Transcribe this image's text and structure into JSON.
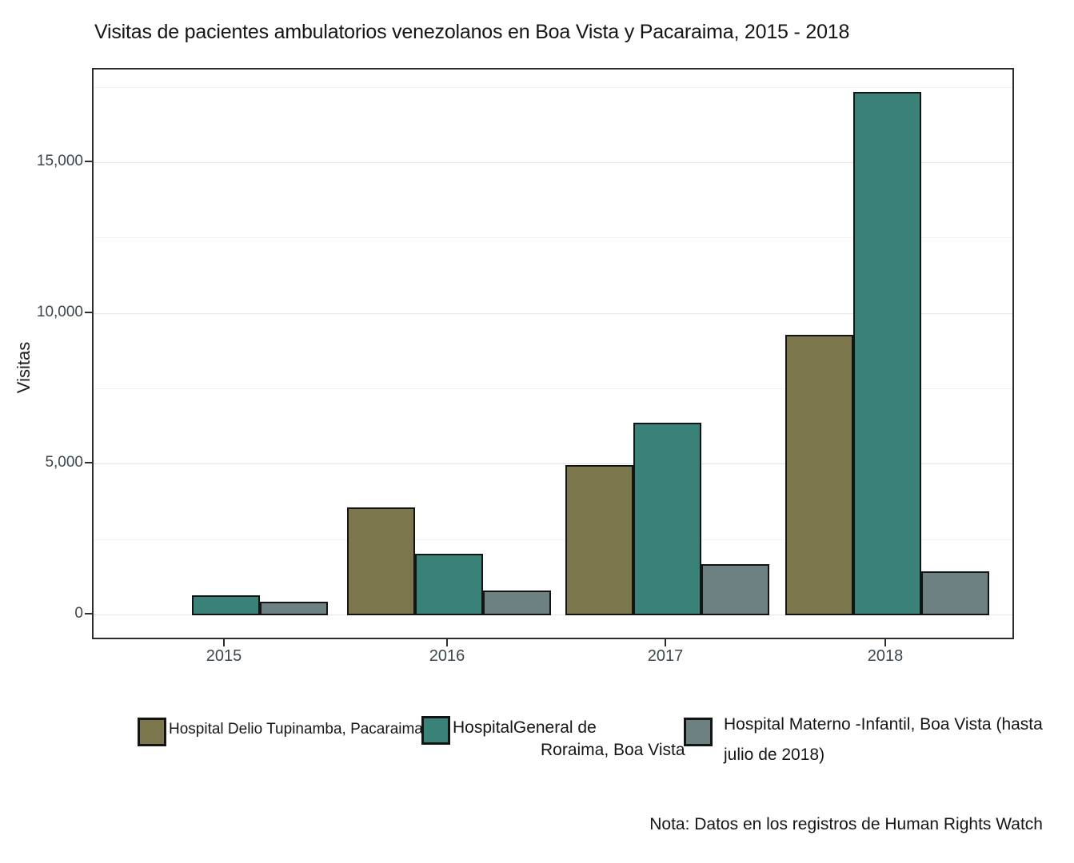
{
  "legend": {
    "items": [
      {
        "lines": [
          "Hospital Delio Tupinamba, Pacaraima"
        ]
      },
      {
        "lines": [
          "HospitalGeneral de",
          "Roraima, Boa Vista"
        ]
      },
      {
        "lines": [
          "Hospital Materno -Infantil, Boa Vista (hasta",
          "julio de 2018)"
        ]
      }
    ]
  },
  "footer": {
    "note": "Nota: Datos en los registros de Human Rights Watch"
  },
  "chart_data": {
    "type": "bar",
    "title": "Visitas de pacientes ambulatorios venezolanos en Boa Vista y Pacaraima, 2015 - 2018",
    "xlabel": "",
    "ylabel": "Visitas",
    "categories": [
      "2015",
      "2016",
      "2017",
      "2018"
    ],
    "series": [
      {
        "name": "Hospital Delio Tupinamba, Pacaraima",
        "color": "#7c764d",
        "values": [
          0,
          3580,
          4980,
          9300
        ]
      },
      {
        "name": "HospitalGeneral de Roraima, Boa Vista",
        "color": "#3a8277",
        "values": [
          650,
          2040,
          6390,
          17350
        ]
      },
      {
        "name": "Hospital Materno -Infantil, Boa Vista (hasta julio de 2018)",
        "color": "#6d8082",
        "values": [
          450,
          820,
          1700,
          1460
        ]
      }
    ],
    "yticks": [
      0,
      5000,
      10000,
      15000
    ],
    "ytick_labels": [
      "0",
      "5,000",
      "10,000",
      "15,000"
    ],
    "minor_ytick_step": 2500,
    "ylim": [
      0,
      18100
    ],
    "grid": true,
    "legend_position": "bottom",
    "note": "Nota: Datos en los registros de Human Rights Watch"
  }
}
